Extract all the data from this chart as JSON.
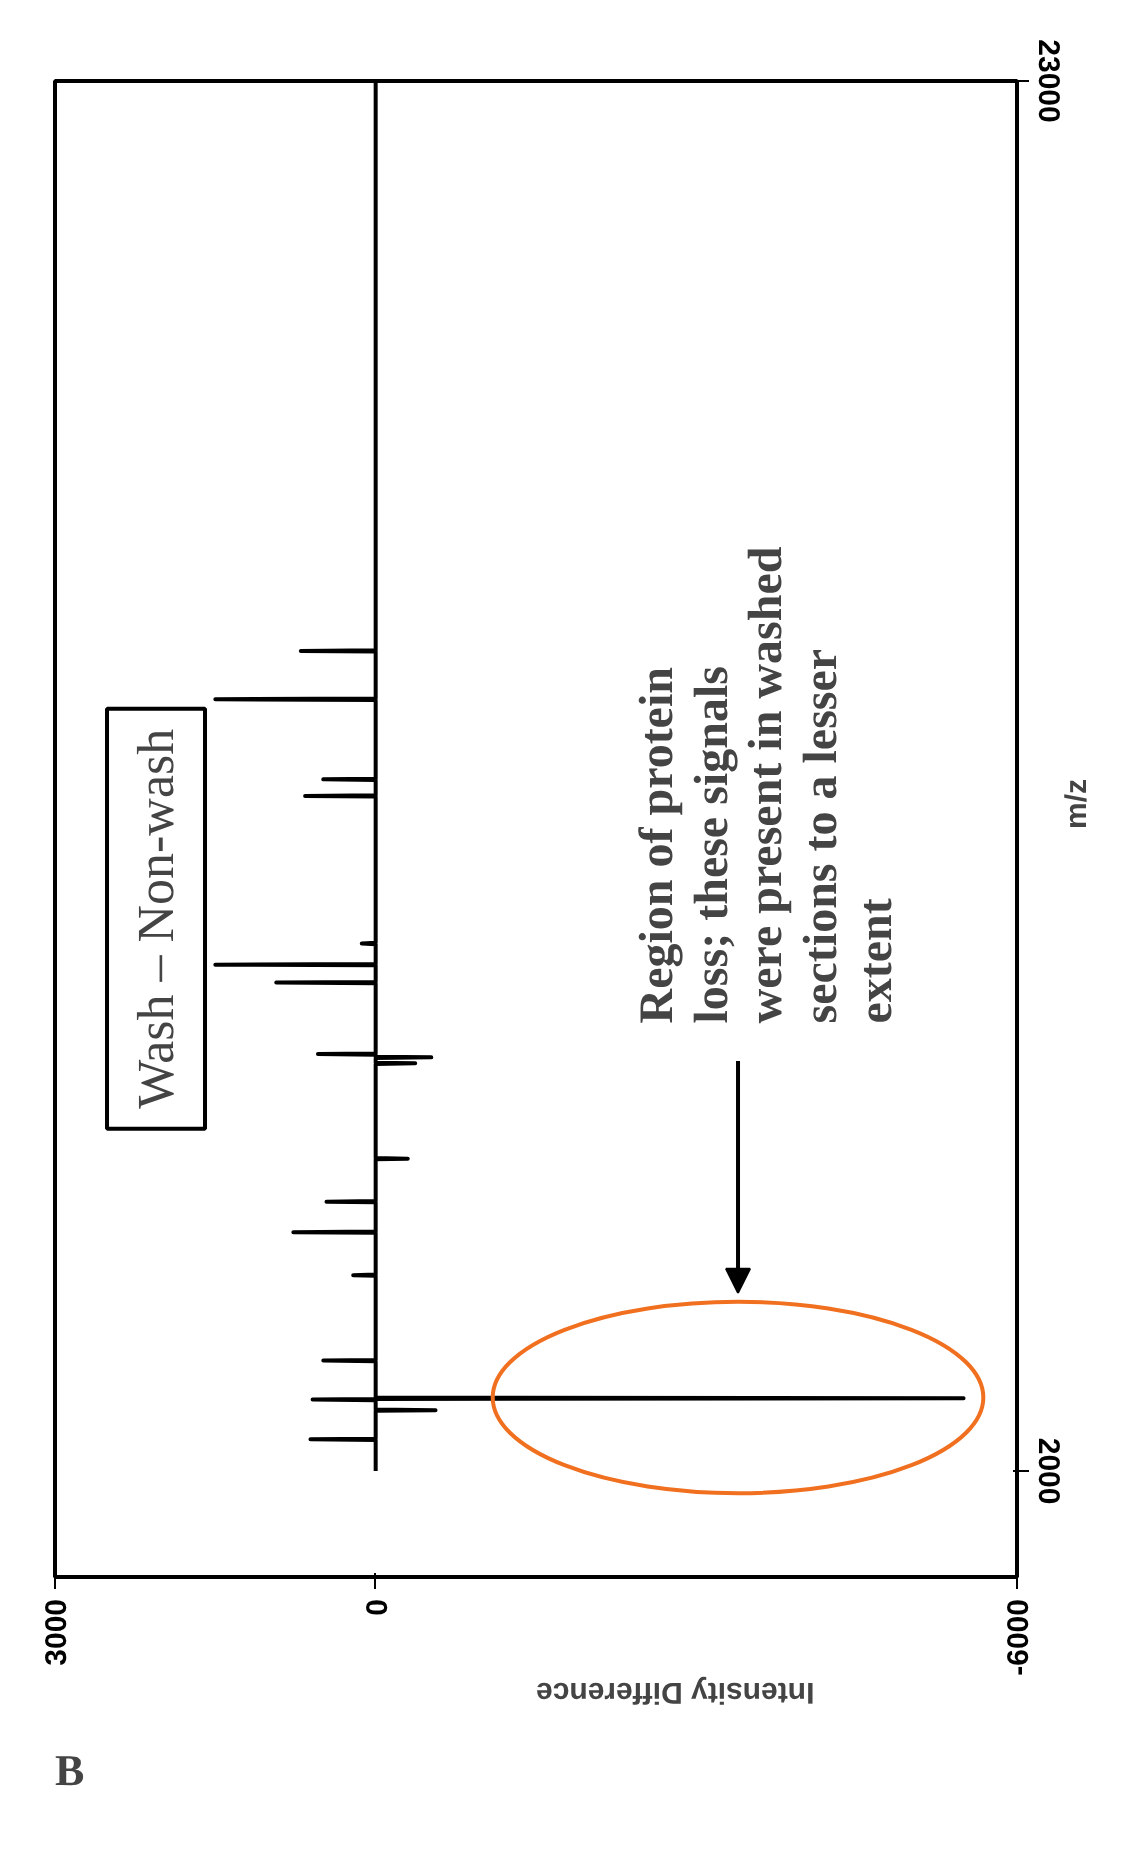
{
  "chart_data": {
    "type": "line",
    "title": "Wash – Non-wash",
    "xlabel": "Intensity Difference",
    "ylabel": "m/z",
    "x": [
      0,
      0,
      610,
      0,
      0,
      -560,
      0,
      0,
      590,
      0,
      0,
      -5500,
      0,
      0,
      490,
      0,
      0,
      210,
      0,
      0,
      770,
      0,
      0,
      460,
      0,
      0,
      -300,
      0,
      0,
      -370,
      0,
      0,
      -520,
      0,
      0,
      540,
      0,
      0,
      930,
      0,
      0,
      1500,
      0,
      0,
      130,
      0,
      0,
      660,
      0,
      0,
      490,
      0,
      0,
      1500,
      0,
      0,
      700,
      0,
      0
    ],
    "series": [
      {
        "color": "#000000",
        "values": [
          2000,
          2470,
          2480,
          2490,
          2910,
          2920,
          2930,
          3070,
          3080,
          3090,
          3090,
          3100,
          3110,
          3660,
          3670,
          3680,
          4950,
          4960,
          4970,
          5600,
          5610,
          5620,
          6060,
          6070,
          6080,
          6710,
          6720,
          6730,
          8150,
          8160,
          8170,
          8240,
          8250,
          8260,
          8290,
          8300,
          8310,
          9370,
          9380,
          9390,
          9640,
          9650,
          9660,
          9960,
          9970,
          9980,
          12190,
          12200,
          12210,
          12440,
          12450,
          12460,
          13650,
          13660,
          13670,
          14380,
          14390,
          14400,
          23000
        ]
      }
    ],
    "xlim": [
      3000,
      -6000
    ],
    "xticks": [
      3000,
      0,
      -6000
    ],
    "ylim": [
      400,
      23000
    ],
    "yticks": [
      2000,
      23000
    ],
    "grid": false,
    "marker": "none",
    "line_style": "solid",
    "annotations": [
      "Region of protein loss; these signals were present in washed sections to a lesser extent",
      "B"
    ]
  }
}
